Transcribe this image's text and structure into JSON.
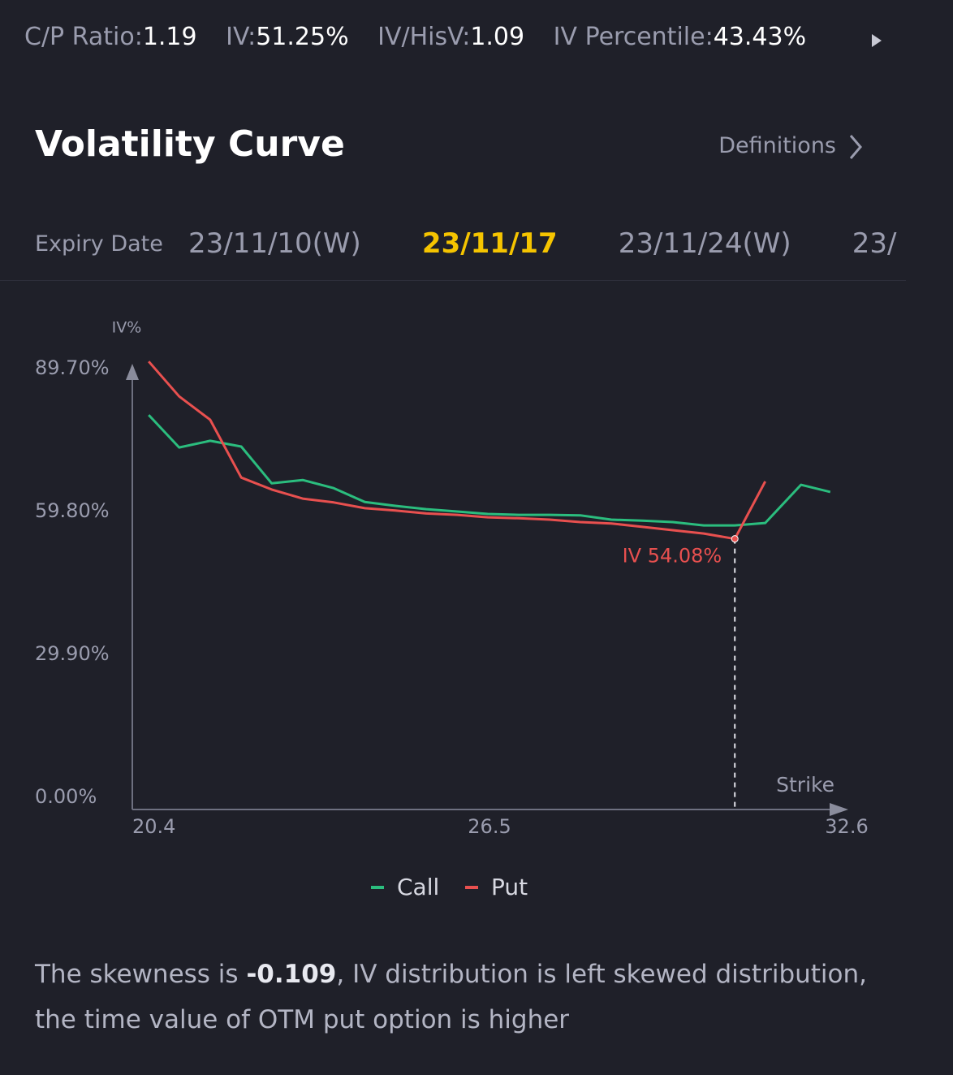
{
  "header": {
    "stats": [
      {
        "label": "C/P Ratio:",
        "value": "1.19"
      },
      {
        "label": "IV:",
        "value": "51.25%"
      },
      {
        "label": "IV/HisV:",
        "value": "1.09"
      },
      {
        "label": "IV Percentile:",
        "value": "43.43%"
      }
    ]
  },
  "section": {
    "title": "Volatility Curve",
    "link": "Definitions"
  },
  "expiry": {
    "label": "Expiry Date",
    "dates": [
      "23/11/10(W)",
      "23/11/17",
      "23/11/24(W)",
      "23/"
    ],
    "selected": 1
  },
  "chart_data": {
    "type": "line",
    "y_label": "IV%",
    "x_label": "Strike",
    "x": [
      20.68,
      21.2,
      21.73,
      22.26,
      22.78,
      23.31,
      23.84,
      24.37,
      24.89,
      25.42,
      25.95,
      26.47,
      27.0,
      27.53,
      28.05,
      28.58,
      29.11,
      29.63,
      30.16,
      30.69,
      31.21,
      31.82,
      32.32
    ],
    "series": [
      {
        "name": "Call",
        "color": "#2bbd7e",
        "values": [
          80.0,
          73.2,
          74.6,
          73.4,
          65.7,
          66.4,
          64.7,
          61.8,
          61.0,
          60.3,
          59.8,
          59.3,
          59.1,
          59.1,
          59.0,
          58.1,
          57.9,
          57.6,
          56.9,
          56.9,
          57.4,
          65.4,
          63.9
        ]
      },
      {
        "name": "Put",
        "color": "#e8504f",
        "values": [
          91.2,
          83.9,
          79.0,
          66.9,
          64.4,
          62.5,
          61.7,
          60.5,
          60.0,
          59.4,
          59.1,
          58.6,
          58.4,
          58.1,
          57.6,
          57.3,
          56.6,
          55.9,
          55.2,
          54.08,
          66.1,
          null,
          null
        ],
        "value_labels": [
          null,
          null,
          null,
          null,
          null,
          null,
          null,
          null,
          null,
          null,
          null,
          null,
          null,
          null,
          null,
          null,
          null,
          null,
          null,
          "IV 54.08%",
          null,
          null,
          null
        ]
      }
    ],
    "xlim": [
      20.4,
      32.6
    ],
    "xticks": [
      20.4,
      26.5,
      32.6
    ],
    "ylim": [
      0,
      95
    ],
    "yticks": [
      {
        "value": 0,
        "label": "0.00%"
      },
      {
        "value": 29.9,
        "label": "29.90%"
      },
      {
        "value": 59.8,
        "label": "59.80%"
      },
      {
        "value": 89.7,
        "label": "89.70%"
      }
    ]
  },
  "description": {
    "before": "The skewness is ",
    "value": "-0.109",
    "after": ", IV distribution is left  skewed distribution, the time value of OTM put option is higher"
  }
}
